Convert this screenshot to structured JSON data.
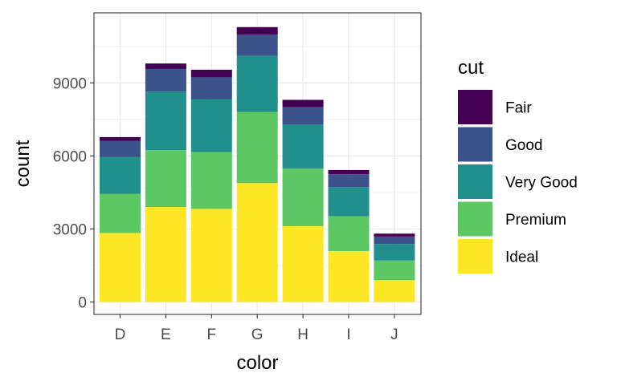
{
  "chart_data": {
    "type": "bar",
    "stacked": true,
    "categories": [
      "D",
      "E",
      "F",
      "G",
      "H",
      "I",
      "J"
    ],
    "xlabel": "color",
    "ylabel": "count",
    "ylim": [
      0,
      11800
    ],
    "yticks": [
      0,
      3000,
      6000,
      9000
    ],
    "yticks_labels": [
      "0",
      "3000",
      "6000",
      "9000"
    ],
    "grid": true,
    "legend": {
      "title": "cut",
      "position": "right"
    },
    "series": [
      {
        "name": "Fair",
        "color": "#440154",
        "values": [
          163,
          224,
          312,
          314,
          303,
          175,
          119
        ]
      },
      {
        "name": "Good",
        "color": "#3B528B",
        "values": [
          662,
          933,
          909,
          871,
          702,
          522,
          307
        ]
      },
      {
        "name": "Very Good",
        "color": "#21908C",
        "values": [
          1513,
          2400,
          2164,
          2299,
          1824,
          1204,
          678
        ]
      },
      {
        "name": "Premium",
        "color": "#5DC863",
        "values": [
          1603,
          2337,
          2331,
          2924,
          2360,
          1428,
          808
        ]
      },
      {
        "name": "Ideal",
        "color": "#FDE725",
        "values": [
          2834,
          3903,
          3826,
          4884,
          3115,
          2093,
          896
        ]
      }
    ]
  }
}
